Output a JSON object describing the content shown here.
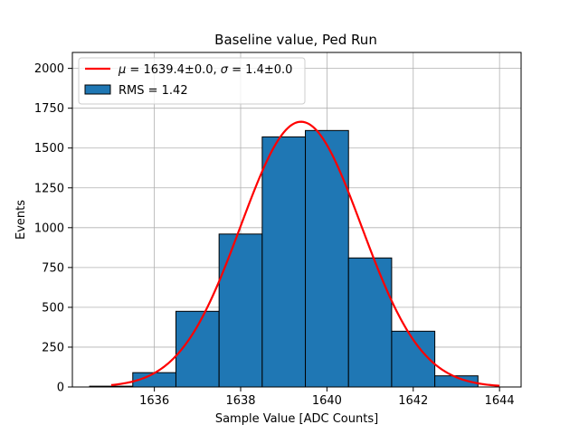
{
  "chart_data": {
    "type": "bar",
    "title": "Baseline value, Ped Run",
    "xlabel": "Sample Value [ADC Counts]",
    "ylabel": "Events",
    "xlim": [
      1634.1,
      1644.5
    ],
    "ylim": [
      0,
      2100
    ],
    "xticks": [
      1636,
      1638,
      1640,
      1642,
      1644
    ],
    "yticks": [
      0,
      250,
      500,
      750,
      1000,
      1250,
      1500,
      1750,
      2000
    ],
    "grid": true,
    "legend_position": "top-left",
    "histogram": {
      "name": "RMS = 1.42",
      "bin_edges": [
        1634.5,
        1635.5,
        1636.5,
        1637.5,
        1638.5,
        1639.5,
        1640.5,
        1641.5,
        1642.5,
        1643.5
      ],
      "values": [
        5,
        90,
        475,
        960,
        1570,
        1610,
        810,
        350,
        70
      ],
      "color": "#1f77b4"
    },
    "fit": {
      "name": "μ = 1639.4±0.0, σ = 1.4±0.0",
      "name_parts": {
        "mu_symbol": "μ",
        "mu_value": " = 1639.4±0.0, ",
        "sigma_symbol": "σ",
        "sigma_value": " = 1.4±0.0"
      },
      "mu": 1639.4,
      "sigma": 1.4,
      "peak": 1665,
      "x_range": [
        1635.0,
        1644.0
      ],
      "color": "#ff0000"
    }
  }
}
